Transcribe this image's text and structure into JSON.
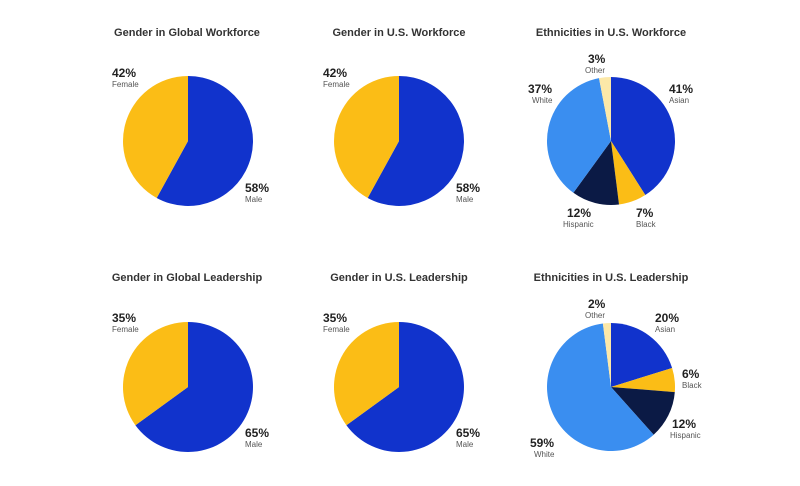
{
  "chart_data": [
    {
      "type": "pie",
      "title": "Gender in Global Workforce",
      "slices": [
        {
          "label": "Male",
          "value": 58,
          "value_label": "58%",
          "color": "#1133CC"
        },
        {
          "label": "Female",
          "value": 42,
          "value_label": "42%",
          "color": "#FBBD16"
        }
      ]
    },
    {
      "type": "pie",
      "title": "Gender in U.S. Workforce",
      "slices": [
        {
          "label": "Male",
          "value": 58,
          "value_label": "58%",
          "color": "#1133CC"
        },
        {
          "label": "Female",
          "value": 42,
          "value_label": "42%",
          "color": "#FBBD16"
        }
      ]
    },
    {
      "type": "pie",
      "title": "Ethnicities in U.S. Workforce",
      "slices": [
        {
          "label": "Asian",
          "value": 41,
          "value_label": "41%",
          "color": "#1133CC"
        },
        {
          "label": "Black",
          "value": 7,
          "value_label": "7%",
          "color": "#FBBD16"
        },
        {
          "label": "Hispanic",
          "value": 12,
          "value_label": "12%",
          "color": "#0B1A45"
        },
        {
          "label": "White",
          "value": 37,
          "value_label": "37%",
          "color": "#3A8EF0"
        },
        {
          "label": "Other",
          "value": 3,
          "value_label": "3%",
          "color": "#FCE8A8"
        }
      ]
    },
    {
      "type": "pie",
      "title": "Gender in Global Leadership",
      "slices": [
        {
          "label": "Male",
          "value": 65,
          "value_label": "65%",
          "color": "#1133CC"
        },
        {
          "label": "Female",
          "value": 35,
          "value_label": "35%",
          "color": "#FBBD16"
        }
      ]
    },
    {
      "type": "pie",
      "title": "Gender in U.S. Leadership",
      "slices": [
        {
          "label": "Male",
          "value": 65,
          "value_label": "65%",
          "color": "#1133CC"
        },
        {
          "label": "Female",
          "value": 35,
          "value_label": "35%",
          "color": "#FBBD16"
        }
      ]
    },
    {
      "type": "pie",
      "title": "Ethnicities in U.S. Leadership",
      "slices": [
        {
          "label": "Asian",
          "value": 20,
          "value_label": "20%",
          "color": "#1133CC"
        },
        {
          "label": "Black",
          "value": 6,
          "value_label": "6%",
          "color": "#FBBD16"
        },
        {
          "label": "Hispanic",
          "value": 12,
          "value_label": "12%",
          "color": "#0B1A45"
        },
        {
          "label": "White",
          "value": 59,
          "value_label": "59%",
          "color": "#3A8EF0"
        },
        {
          "label": "Other",
          "value": 2,
          "value_label": "2%",
          "color": "#FCE8A8"
        }
      ]
    }
  ]
}
